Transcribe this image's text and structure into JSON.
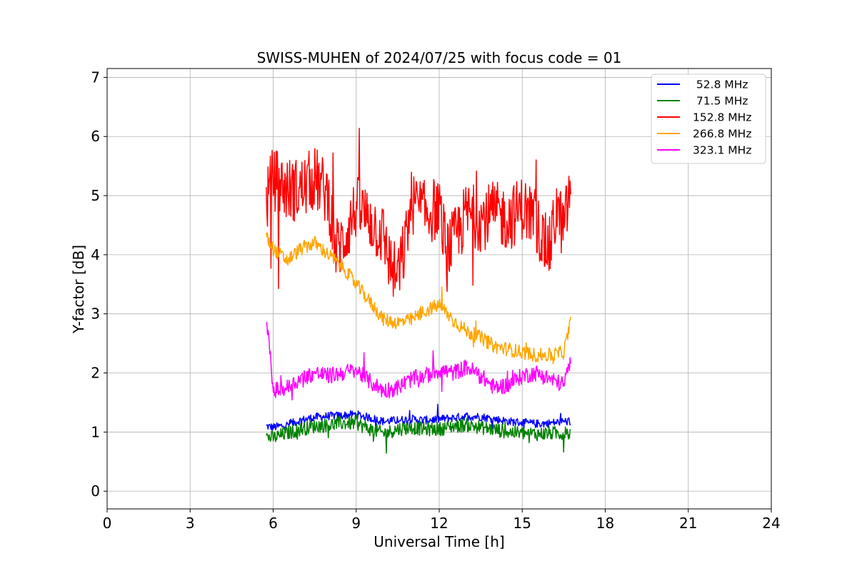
{
  "chart_data": {
    "type": "line",
    "title": "SWISS-MUHEN of 2024/07/25 with focus code = 01",
    "xlabel": "Universal Time [h]",
    "ylabel": "Y-factor [dB]",
    "xlim": [
      0,
      24
    ],
    "ylim": [
      -0.3,
      7.15
    ],
    "xticks": [
      0,
      3,
      6,
      9,
      12,
      15,
      18,
      21,
      24
    ],
    "yticks": [
      0,
      1,
      2,
      3,
      4,
      5,
      6,
      7
    ],
    "grid": true,
    "legend_position": "top-right",
    "series": [
      {
        "name": " 52.8 MHz",
        "color": "#0000ff",
        "noise": 0.07,
        "x": [
          5.75,
          6.0,
          6.5,
          7.0,
          7.5,
          8.0,
          8.5,
          9.0,
          9.5,
          10.0,
          10.5,
          11.0,
          11.5,
          12.0,
          12.5,
          13.0,
          13.5,
          14.0,
          14.5,
          15.0,
          15.5,
          16.0,
          16.5,
          16.75
        ],
        "y": [
          1.1,
          1.08,
          1.12,
          1.2,
          1.25,
          1.27,
          1.28,
          1.3,
          1.24,
          1.18,
          1.2,
          1.22,
          1.2,
          1.22,
          1.24,
          1.27,
          1.26,
          1.22,
          1.18,
          1.16,
          1.14,
          1.15,
          1.18,
          1.18
        ]
      },
      {
        "name": " 71.5 MHz",
        "color": "#008000",
        "noise": 0.12,
        "x": [
          5.75,
          6.0,
          6.5,
          7.0,
          7.5,
          8.0,
          8.5,
          9.0,
          9.5,
          10.0,
          10.5,
          11.0,
          11.5,
          12.0,
          12.5,
          13.0,
          13.5,
          14.0,
          14.5,
          15.0,
          15.5,
          16.0,
          16.5,
          16.75
        ],
        "y": [
          0.92,
          0.9,
          0.98,
          1.05,
          1.1,
          1.12,
          1.15,
          1.15,
          1.05,
          0.98,
          1.05,
          1.08,
          1.05,
          1.05,
          1.1,
          1.12,
          1.08,
          1.04,
          1.0,
          0.98,
          0.97,
          0.98,
          0.98,
          0.98
        ]
      },
      {
        "name": "152.8 MHz",
        "color": "#ff0000",
        "noise": 0.55,
        "x": [
          5.75,
          6.0,
          6.5,
          7.0,
          7.5,
          8.0,
          8.25,
          8.5,
          9.0,
          9.5,
          10.0,
          10.25,
          10.5,
          10.75,
          11.0,
          11.5,
          12.0,
          12.25,
          12.5,
          13.0,
          13.5,
          14.0,
          14.5,
          15.0,
          15.5,
          15.75,
          16.0,
          16.25,
          16.5,
          16.75
        ],
        "y": [
          4.9,
          5.3,
          5.1,
          5.1,
          5.3,
          5.0,
          4.1,
          4.2,
          4.8,
          4.6,
          4.3,
          3.8,
          3.6,
          4.1,
          4.9,
          4.7,
          4.8,
          4.1,
          4.2,
          4.7,
          4.6,
          4.7,
          4.6,
          4.8,
          4.6,
          4.2,
          4.1,
          4.8,
          4.4,
          5.2
        ]
      },
      {
        "name": "266.8 MHz",
        "color": "#ffa500",
        "noise": 0.12,
        "x": [
          5.75,
          6.0,
          6.5,
          7.0,
          7.5,
          8.0,
          8.5,
          9.0,
          9.5,
          10.0,
          10.5,
          11.0,
          11.5,
          12.0,
          12.5,
          13.0,
          13.5,
          14.0,
          14.5,
          15.0,
          15.5,
          16.0,
          16.5,
          16.75
        ],
        "y": [
          4.3,
          4.1,
          3.9,
          4.1,
          4.2,
          4.0,
          3.8,
          3.5,
          3.2,
          2.9,
          2.85,
          2.9,
          3.05,
          3.15,
          2.9,
          2.7,
          2.6,
          2.45,
          2.4,
          2.35,
          2.3,
          2.3,
          2.35,
          2.85
        ]
      },
      {
        "name": "323.1 MHz",
        "color": "#ff00ff",
        "noise": 0.14,
        "x": [
          5.75,
          6.0,
          6.5,
          7.0,
          7.5,
          8.0,
          8.5,
          9.0,
          9.5,
          10.0,
          10.5,
          11.0,
          11.5,
          12.0,
          12.5,
          13.0,
          13.5,
          14.0,
          14.5,
          15.0,
          15.5,
          16.0,
          16.5,
          16.75
        ],
        "y": [
          3.0,
          1.7,
          1.75,
          1.9,
          2.0,
          1.95,
          2.0,
          2.05,
          1.85,
          1.7,
          1.75,
          1.9,
          1.95,
          2.05,
          2.0,
          2.1,
          1.95,
          1.75,
          1.8,
          1.95,
          2.0,
          1.9,
          1.8,
          2.2
        ]
      }
    ]
  }
}
